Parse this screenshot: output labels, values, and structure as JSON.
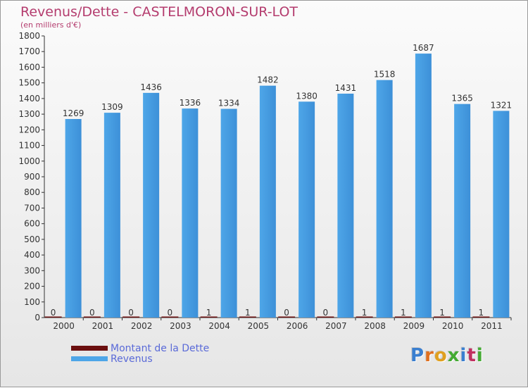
{
  "colors": {
    "title": "#b43c6e",
    "legend_text": "#5a6ad8",
    "revenus": "#4ea6e8",
    "revenus_dark": "#2f80c8",
    "dette": "#6b0f0f",
    "label": "#333333",
    "axis": "#333333",
    "grid": "#cfcfcf"
  },
  "logo": {
    "letters": [
      "P",
      "r",
      "o",
      "x",
      "i",
      "t",
      "i"
    ],
    "colors": [
      "#3a7fd0",
      "#e07020",
      "#e0a020",
      "#44aa33",
      "#3a7fd0",
      "#c03060",
      "#44aa33"
    ]
  },
  "chart_data": {
    "type": "bar",
    "title": "Revenus/Dette - CASTELMORON-SUR-LOT",
    "subtitle": "(en milliers d'€)",
    "xlabel": "",
    "ylabel": "",
    "ylim": [
      0,
      1800
    ],
    "yticks": [
      0,
      100,
      200,
      300,
      400,
      500,
      600,
      700,
      800,
      900,
      1000,
      1100,
      1200,
      1300,
      1400,
      1500,
      1600,
      1700,
      1800
    ],
    "categories": [
      "2000",
      "2001",
      "2002",
      "2003",
      "2004",
      "2005",
      "2006",
      "2007",
      "2008",
      "2009",
      "2010",
      "2011"
    ],
    "series": [
      {
        "name": "Montant de la Dette",
        "values": [
          0,
          0,
          0,
          0,
          1,
          1,
          0,
          0,
          1,
          1,
          1,
          1
        ]
      },
      {
        "name": "Revenus",
        "values": [
          1269,
          1309,
          1436,
          1336,
          1334,
          1482,
          1380,
          1431,
          1518,
          1687,
          1365,
          1321
        ]
      }
    ],
    "legend_position": "bottom-left",
    "grid": false
  }
}
